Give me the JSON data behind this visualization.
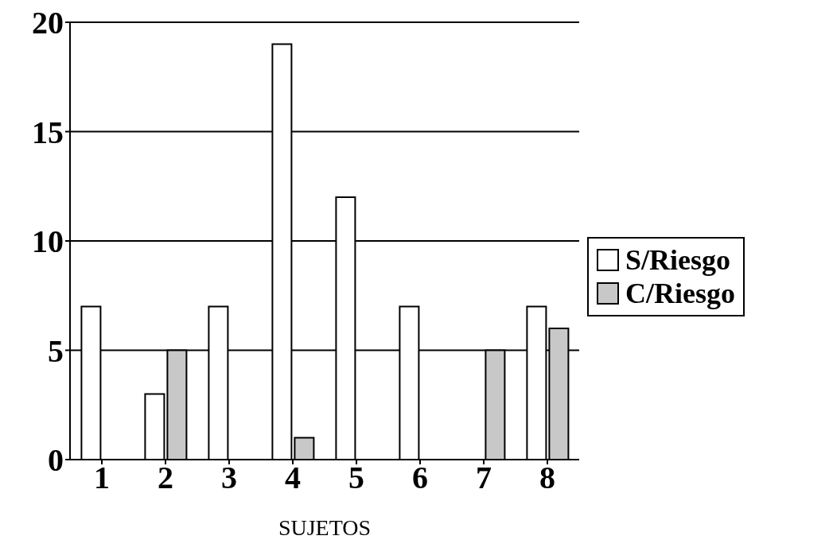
{
  "chart_data": {
    "type": "bar",
    "xlabel": "SUJETOS",
    "categories": [
      "1",
      "2",
      "3",
      "4",
      "5",
      "6",
      "7",
      "8"
    ],
    "series": [
      {
        "name": "S/Riesgo",
        "color": "#ffffff",
        "values": [
          7,
          3,
          7,
          19,
          12,
          7,
          0,
          7
        ]
      },
      {
        "name": "C/Riesgo",
        "color": "#c8c8c8",
        "values": [
          0,
          5,
          0,
          1,
          0,
          0,
          5,
          6
        ]
      }
    ],
    "ylim": [
      0,
      20
    ],
    "yticks": [
      0,
      5,
      10,
      15,
      20
    ],
    "grid": "y",
    "legend": "right"
  }
}
